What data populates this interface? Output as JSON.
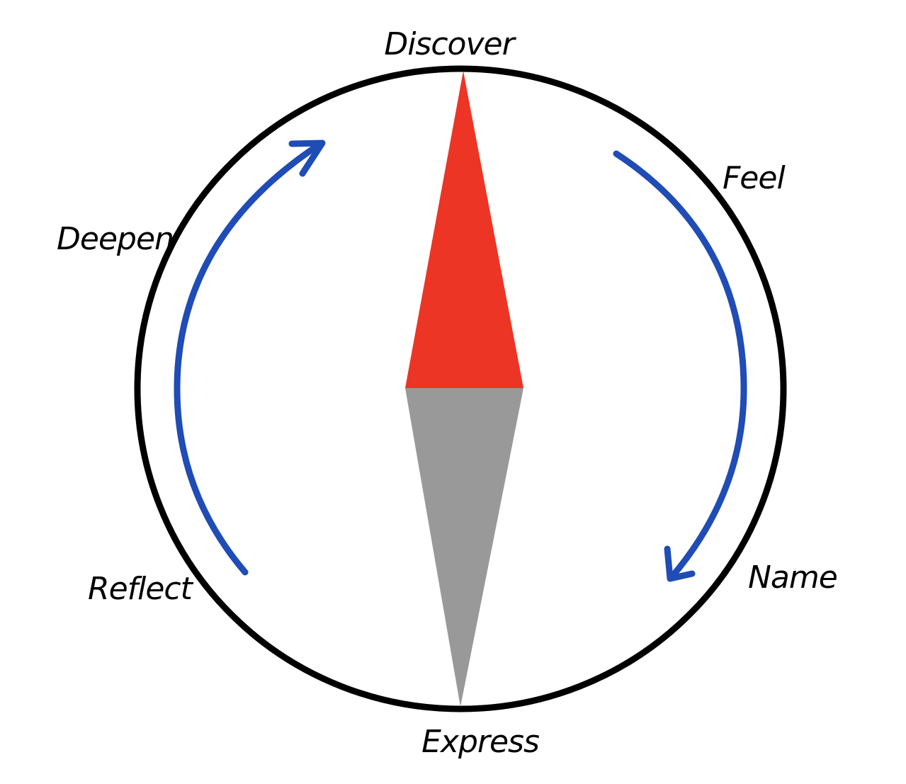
{
  "colors": {
    "ring": "#000000",
    "needle_north": "#ec3525",
    "needle_south": "#999999",
    "arrows": "#1f4cb5",
    "text": "#000000"
  },
  "stages": {
    "discover": "Discover",
    "feel": "Feel",
    "name": "Name",
    "express": "Express",
    "reflect": "Reflect",
    "deepen": "Deepen"
  }
}
